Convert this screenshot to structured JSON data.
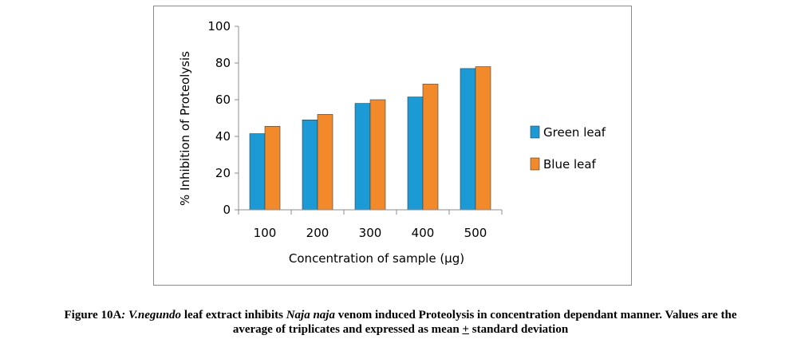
{
  "chart_data": {
    "type": "bar",
    "categories": [
      "100",
      "200",
      "300",
      "400",
      "500"
    ],
    "series": [
      {
        "name": "Green leaf",
        "color": "#1c9ad6",
        "values": [
          41.5,
          49,
          58,
          61.5,
          77
        ]
      },
      {
        "name": "Blue leaf",
        "color": "#f28a2b",
        "values": [
          45.5,
          52,
          60,
          68.5,
          78
        ]
      }
    ],
    "title": "",
    "xlabel": "Concentration of sample  (µg)",
    "ylabel": "% Inhibition of Proteolysis",
    "ylim": [
      0,
      100
    ],
    "yticks": [
      "0",
      "20",
      "40",
      "60",
      "80",
      "100"
    ],
    "grid": false,
    "legend_position": "right"
  },
  "caption": {
    "fig_label": "Figure 10A",
    "fig_sep": ": ",
    "species": "V.negundo",
    "part1": " leaf extract inhibits ",
    "venom": "Naja naja",
    "part2": " venom induced Proteolysis in concentration dependant manner. Values are the",
    "line2_a": "average of triplicates and expressed as mean ",
    "pm_symbol": "+",
    "line2_b": " standard deviation"
  }
}
